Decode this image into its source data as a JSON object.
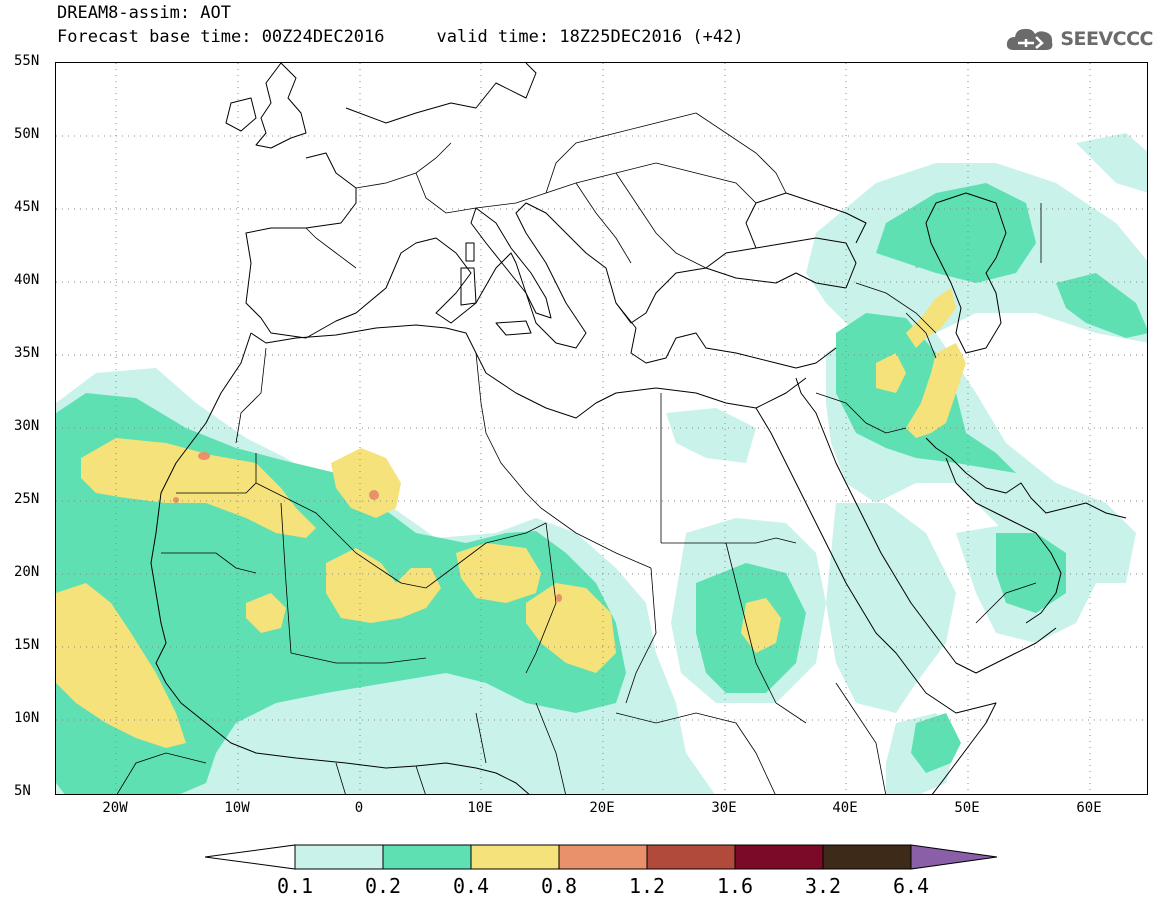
{
  "header": {
    "title": "DREAM8-assim: AOT",
    "base_time": "Forecast base time: 00Z24DEC2016",
    "valid_time": "valid time: 18Z25DEC2016 (+42)"
  },
  "logo": {
    "text": "SEEVCCC",
    "icon": "cloud-icon"
  },
  "map": {
    "variable": "Aerosol optical thickness",
    "lon_range": [
      -25,
      65
    ],
    "lat_range": [
      5,
      55
    ],
    "lat_labels": [
      "55N",
      "50N",
      "45N",
      "40N",
      "35N",
      "30N",
      "25N",
      "20N",
      "15N",
      "10N",
      "5N"
    ],
    "lon_labels": [
      "20W",
      "10W",
      "0",
      "10E",
      "20E",
      "30E",
      "40E",
      "50E",
      "60E"
    ],
    "grid": "dotted"
  },
  "legend": {
    "levels": [
      "0.1",
      "0.2",
      "0.4",
      "0.8",
      "1.2",
      "1.6",
      "3.2",
      "6.4"
    ],
    "colors": [
      "#c9f2ea",
      "#5fe0b3",
      "#f5e27a",
      "#e8916a",
      "#b24a3c",
      "#7a0a26",
      "#3d2a18",
      "#8b5fa8"
    ],
    "under_color": "#ffffff",
    "over_color": "#8b5fa8"
  }
}
